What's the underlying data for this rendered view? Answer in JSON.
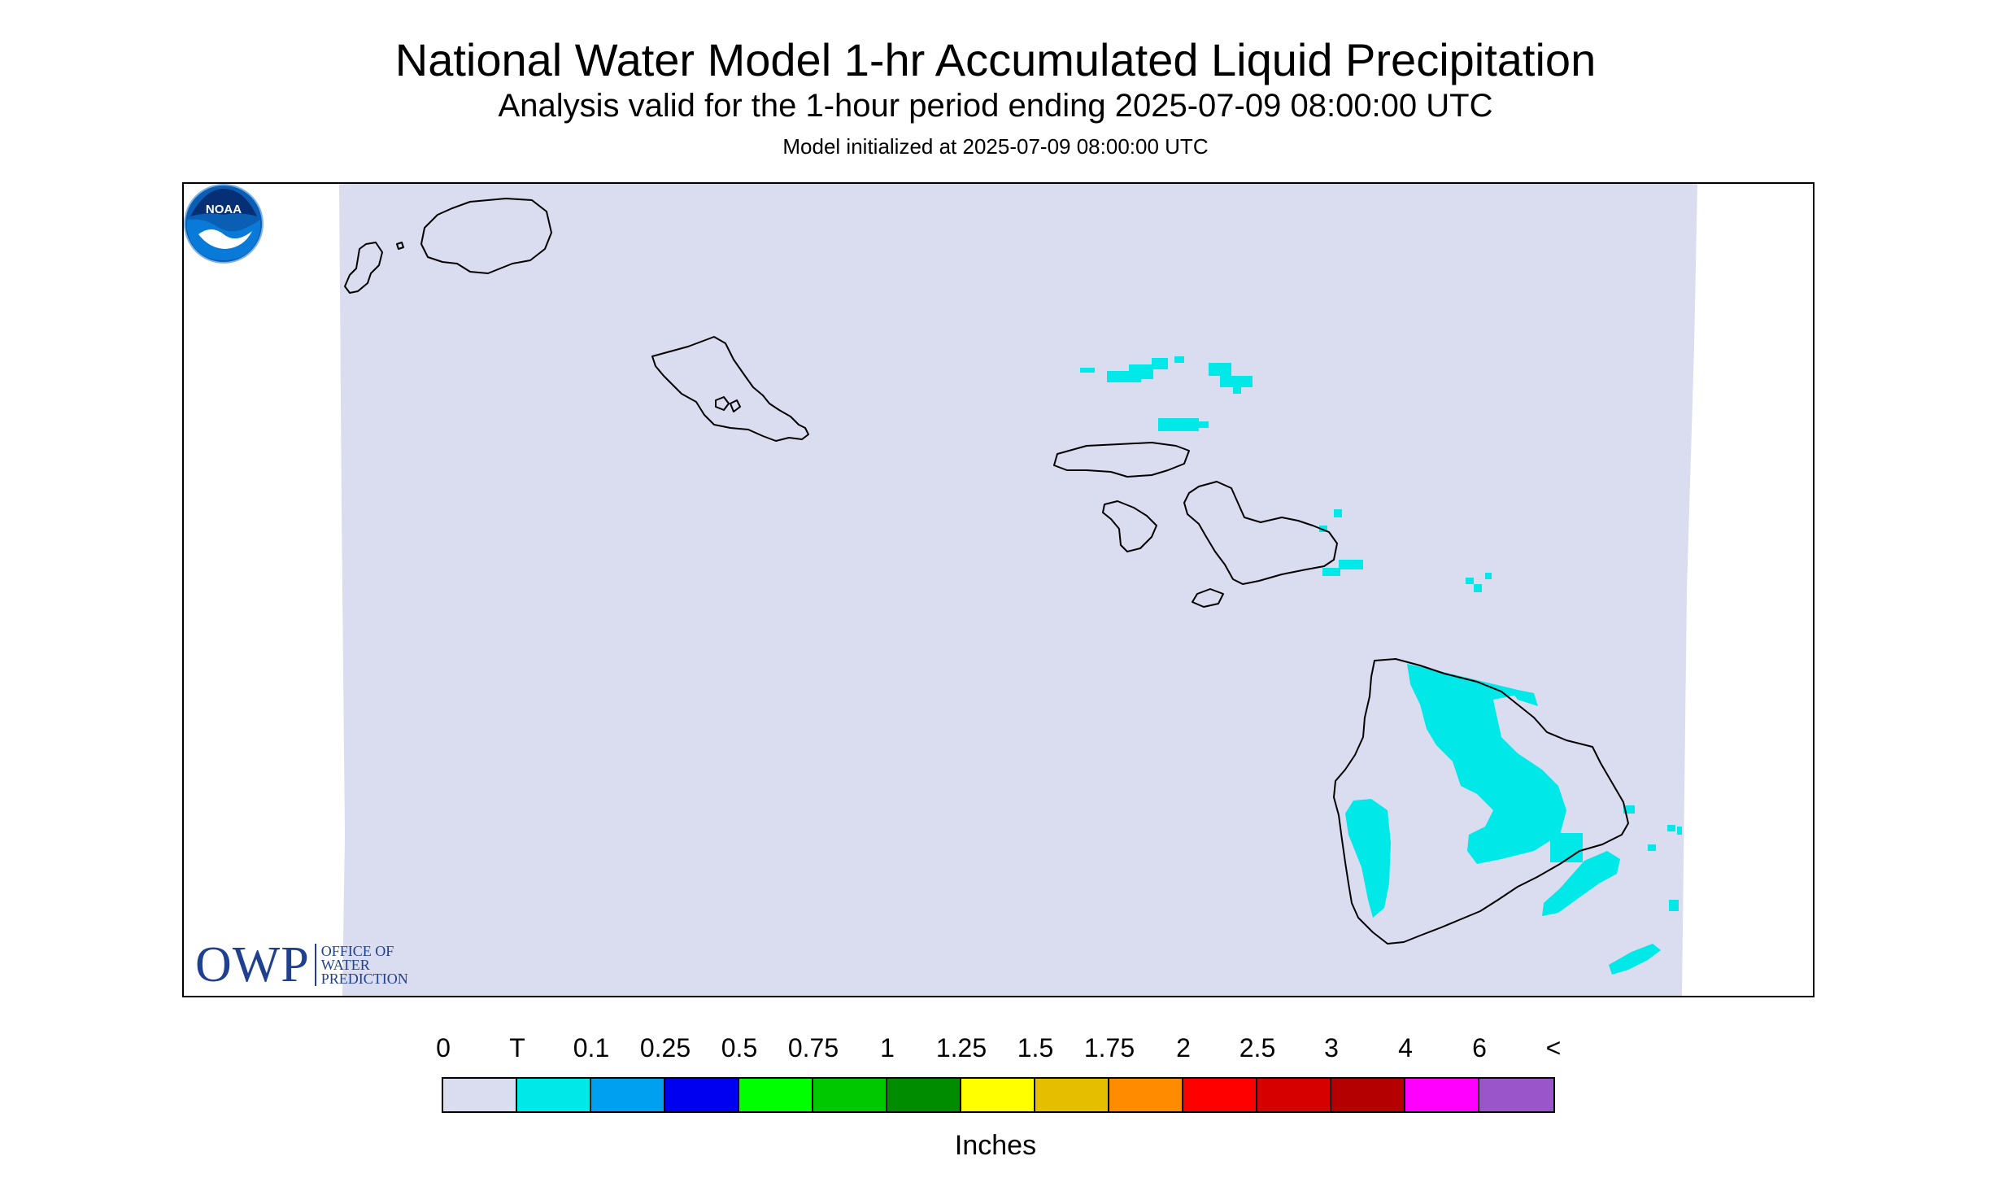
{
  "header": {
    "title": "National Water Model 1-hr Accumulated Liquid Precipitation",
    "subtitle": "Analysis valid for the 1-hour period ending 2025-07-09 08:00:00 UTC",
    "init": "Model initialized at 2025-07-09 08:00:00 UTC"
  },
  "map": {
    "domain_color": "#dadcef",
    "precip_color": "#00e8e8",
    "coast_color": "#000000"
  },
  "logos": {
    "owp_letters": "OWP",
    "owp_line1": "OFFICE OF",
    "owp_line2": "WATER",
    "owp_line3": "PREDICTION",
    "noaa_text": "NOAA"
  },
  "legend": {
    "labels": [
      "0",
      "T",
      "0.1",
      "0.25",
      "0.5",
      "0.75",
      "1",
      "1.25",
      "1.5",
      "1.75",
      "2",
      "2.5",
      "3",
      "4",
      "6",
      "<"
    ],
    "colors": [
      "#dadcef",
      "#00e8e8",
      "#00a0f0",
      "#0000f0",
      "#00ff00",
      "#00c800",
      "#008c00",
      "#ffff00",
      "#e6be00",
      "#ff8c00",
      "#ff0000",
      "#d70000",
      "#b40000",
      "#ff00ff",
      "#9955c9"
    ],
    "units": "Inches"
  }
}
